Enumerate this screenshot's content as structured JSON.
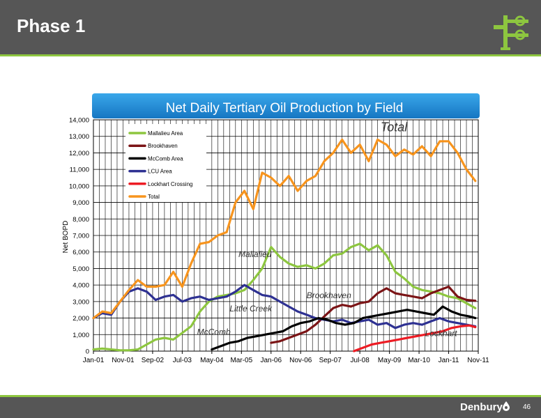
{
  "slide": {
    "title": "Phase 1",
    "brand": "Denbury",
    "page_number": "46"
  },
  "icons": {
    "logo": "oil-wellhead-valve-icon",
    "brand_mark": "oil-drop-icon"
  },
  "colors": {
    "header_bg": "#565656",
    "accent_green": "#8dc63f",
    "chart_title_bg": "#1e90d6"
  },
  "chart_data": {
    "type": "line",
    "title": "Net Daily Tertiary Oil Production by Field",
    "xlabel": "",
    "ylabel": "Net BOPD",
    "ylim": [
      0,
      14000
    ],
    "yticks": [
      0,
      1000,
      2000,
      3000,
      4000,
      5000,
      6000,
      7000,
      8000,
      9000,
      10000,
      11000,
      12000,
      13000,
      14000
    ],
    "ytick_labels": [
      "0",
      "1,000",
      "2,000",
      "3,000",
      "4,000",
      "5,000",
      "6,000",
      "7,000",
      "8,000",
      "9,000",
      "10,000",
      "11,000",
      "12,000",
      "13,000",
      "14,000"
    ],
    "xlim": [
      "2001-01",
      "2011-11"
    ],
    "xticks": [
      "2001-01",
      "2001-11",
      "2002-09",
      "2003-07",
      "2004-05",
      "2005-03",
      "2006-01",
      "2006-11",
      "2007-09",
      "2008-07",
      "2009-05",
      "2010-03",
      "2011-01",
      "2011-11"
    ],
    "xtick_labels": [
      "Jan-01",
      "Nov-01",
      "Sep-02",
      "Jul-03",
      "May-04",
      "Mar-05",
      "Jan-06",
      "Nov-06",
      "Sep-07",
      "Jul-08",
      "May-09",
      "Mar-10",
      "Jan-11",
      "Nov-11"
    ],
    "grid": true,
    "legend": "top-left",
    "series": [
      {
        "name": "Mallalieu Area",
        "color": "#8dc63f",
        "x": [
          "2001-01",
          "2001-04",
          "2001-07",
          "2001-10",
          "2002-01",
          "2002-04",
          "2002-07",
          "2002-10",
          "2003-01",
          "2003-04",
          "2003-07",
          "2003-10",
          "2004-01",
          "2004-04",
          "2004-07",
          "2004-10",
          "2005-01",
          "2005-04",
          "2005-07",
          "2005-10",
          "2006-01",
          "2006-04",
          "2006-07",
          "2006-10",
          "2007-01",
          "2007-04",
          "2007-07",
          "2007-10",
          "2008-01",
          "2008-04",
          "2008-07",
          "2008-10",
          "2009-01",
          "2009-04",
          "2009-07",
          "2009-10",
          "2010-01",
          "2010-04",
          "2010-07",
          "2010-10",
          "2011-01",
          "2011-04",
          "2011-07",
          "2011-10"
        ],
        "y": [
          100,
          150,
          100,
          50,
          50,
          100,
          400,
          700,
          800,
          700,
          1100,
          1500,
          2400,
          3000,
          3300,
          3400,
          3500,
          3700,
          4300,
          5000,
          6300,
          5700,
          5300,
          5100,
          5200,
          5000,
          5300,
          5800,
          5900,
          6300,
          6500,
          6100,
          6400,
          5800,
          4800,
          4400,
          3900,
          3700,
          3600,
          3500,
          3300,
          3200,
          2900,
          2600
        ]
      },
      {
        "name": "Brookhaven",
        "color": "#7b1416",
        "x": [
          "2006-01",
          "2006-04",
          "2006-07",
          "2006-10",
          "2007-01",
          "2007-04",
          "2007-07",
          "2007-10",
          "2008-01",
          "2008-04",
          "2008-07",
          "2008-10",
          "2009-01",
          "2009-04",
          "2009-07",
          "2009-10",
          "2010-01",
          "2010-04",
          "2010-07",
          "2010-10",
          "2011-01",
          "2011-04",
          "2011-07",
          "2011-10"
        ],
        "y": [
          500,
          600,
          800,
          1000,
          1200,
          1600,
          2100,
          2600,
          2800,
          2700,
          2900,
          3000,
          3500,
          3800,
          3500,
          3400,
          3300,
          3200,
          3500,
          3700,
          3900,
          3300,
          3100,
          3050
        ]
      },
      {
        "name": "McComb Area",
        "color": "#000000",
        "x": [
          "2004-05",
          "2004-08",
          "2004-11",
          "2005-02",
          "2005-05",
          "2005-08",
          "2005-11",
          "2006-02",
          "2006-05",
          "2006-08",
          "2006-11",
          "2007-02",
          "2007-05",
          "2007-08",
          "2007-11",
          "2008-02",
          "2008-05",
          "2008-08",
          "2008-11",
          "2009-02",
          "2009-05",
          "2009-08",
          "2009-11",
          "2010-02",
          "2010-05",
          "2010-08",
          "2010-11",
          "2011-02",
          "2011-05",
          "2011-08",
          "2011-10"
        ],
        "y": [
          100,
          300,
          500,
          600,
          800,
          900,
          1000,
          1100,
          1200,
          1500,
          1700,
          1800,
          2000,
          1900,
          1700,
          1600,
          1700,
          2000,
          2100,
          2200,
          2300,
          2400,
          2500,
          2400,
          2300,
          2200,
          2700,
          2400,
          2200,
          2100,
          2000
        ]
      },
      {
        "name": "LCU Area",
        "color": "#2e3192",
        "x": [
          "2001-01",
          "2001-04",
          "2001-07",
          "2001-10",
          "2002-01",
          "2002-04",
          "2002-07",
          "2002-10",
          "2003-01",
          "2003-04",
          "2003-07",
          "2003-10",
          "2004-01",
          "2004-04",
          "2004-07",
          "2004-10",
          "2005-01",
          "2005-04",
          "2005-07",
          "2005-10",
          "2006-01",
          "2006-04",
          "2006-07",
          "2006-10",
          "2007-01",
          "2007-04",
          "2007-07",
          "2007-10",
          "2008-01",
          "2008-04",
          "2008-07",
          "2008-10",
          "2009-01",
          "2009-04",
          "2009-07",
          "2009-10",
          "2010-01",
          "2010-04",
          "2010-07",
          "2010-10",
          "2011-01",
          "2011-04",
          "2011-07",
          "2011-10"
        ],
        "y": [
          2000,
          2300,
          2200,
          3000,
          3600,
          3800,
          3600,
          3100,
          3300,
          3400,
          3000,
          3200,
          3300,
          3100,
          3200,
          3300,
          3600,
          4000,
          3700,
          3400,
          3300,
          3000,
          2700,
          2400,
          2200,
          2000,
          1900,
          1800,
          1900,
          1700,
          1800,
          1900,
          1600,
          1700,
          1400,
          1600,
          1700,
          1600,
          1800,
          2000,
          1800,
          1700,
          1600,
          1500
        ]
      },
      {
        "name": "Lockhart Crossing",
        "color": "#ed1c24",
        "x": [
          "2008-05",
          "2008-08",
          "2008-11",
          "2009-02",
          "2009-05",
          "2009-08",
          "2009-11",
          "2010-02",
          "2010-05",
          "2010-08",
          "2010-11",
          "2011-02",
          "2011-05",
          "2011-08",
          "2011-10"
        ],
        "y": [
          0,
          200,
          400,
          500,
          600,
          700,
          800,
          900,
          1000,
          1100,
          1200,
          1400,
          1500,
          1550,
          1450
        ]
      },
      {
        "name": "Total",
        "color": "#f7941d",
        "x": [
          "2001-01",
          "2001-04",
          "2001-07",
          "2001-10",
          "2002-01",
          "2002-04",
          "2002-07",
          "2002-10",
          "2003-01",
          "2003-04",
          "2003-07",
          "2003-10",
          "2004-01",
          "2004-04",
          "2004-07",
          "2004-10",
          "2005-01",
          "2005-04",
          "2005-07",
          "2005-10",
          "2006-01",
          "2006-04",
          "2006-07",
          "2006-10",
          "2007-01",
          "2007-04",
          "2007-07",
          "2007-10",
          "2008-01",
          "2008-04",
          "2008-07",
          "2008-10",
          "2009-01",
          "2009-04",
          "2009-07",
          "2009-10",
          "2010-01",
          "2010-04",
          "2010-07",
          "2010-10",
          "2011-01",
          "2011-04",
          "2011-07",
          "2011-10"
        ],
        "y": [
          2000,
          2400,
          2300,
          3000,
          3700,
          4300,
          3900,
          3900,
          4000,
          4800,
          3900,
          5300,
          6500,
          6600,
          7000,
          7200,
          9000,
          9700,
          8600,
          10800,
          10500,
          10000,
          10600,
          9700,
          10300,
          10600,
          11500,
          12000,
          12800,
          12000,
          12500,
          11500,
          12800,
          12500,
          11800,
          12200,
          11900,
          12400,
          11800,
          12700,
          12700,
          12000,
          11000,
          10300
        ]
      }
    ],
    "annotations": [
      {
        "text": "Total",
        "x": "2009-02",
        "y": 13300,
        "size": 18
      },
      {
        "text": "Mallalieu",
        "x": "2005-02",
        "y": 5700,
        "size": 12
      },
      {
        "text": "Brookhaven",
        "x": "2007-01",
        "y": 3200,
        "size": 12
      },
      {
        "text": "Little Creek",
        "x": "2004-11",
        "y": 2400,
        "size": 12
      },
      {
        "text": "McComb",
        "x": "2003-12",
        "y": 1000,
        "size": 12
      },
      {
        "text": "Lockhart",
        "x": "2010-05",
        "y": 900,
        "size": 12
      }
    ]
  }
}
